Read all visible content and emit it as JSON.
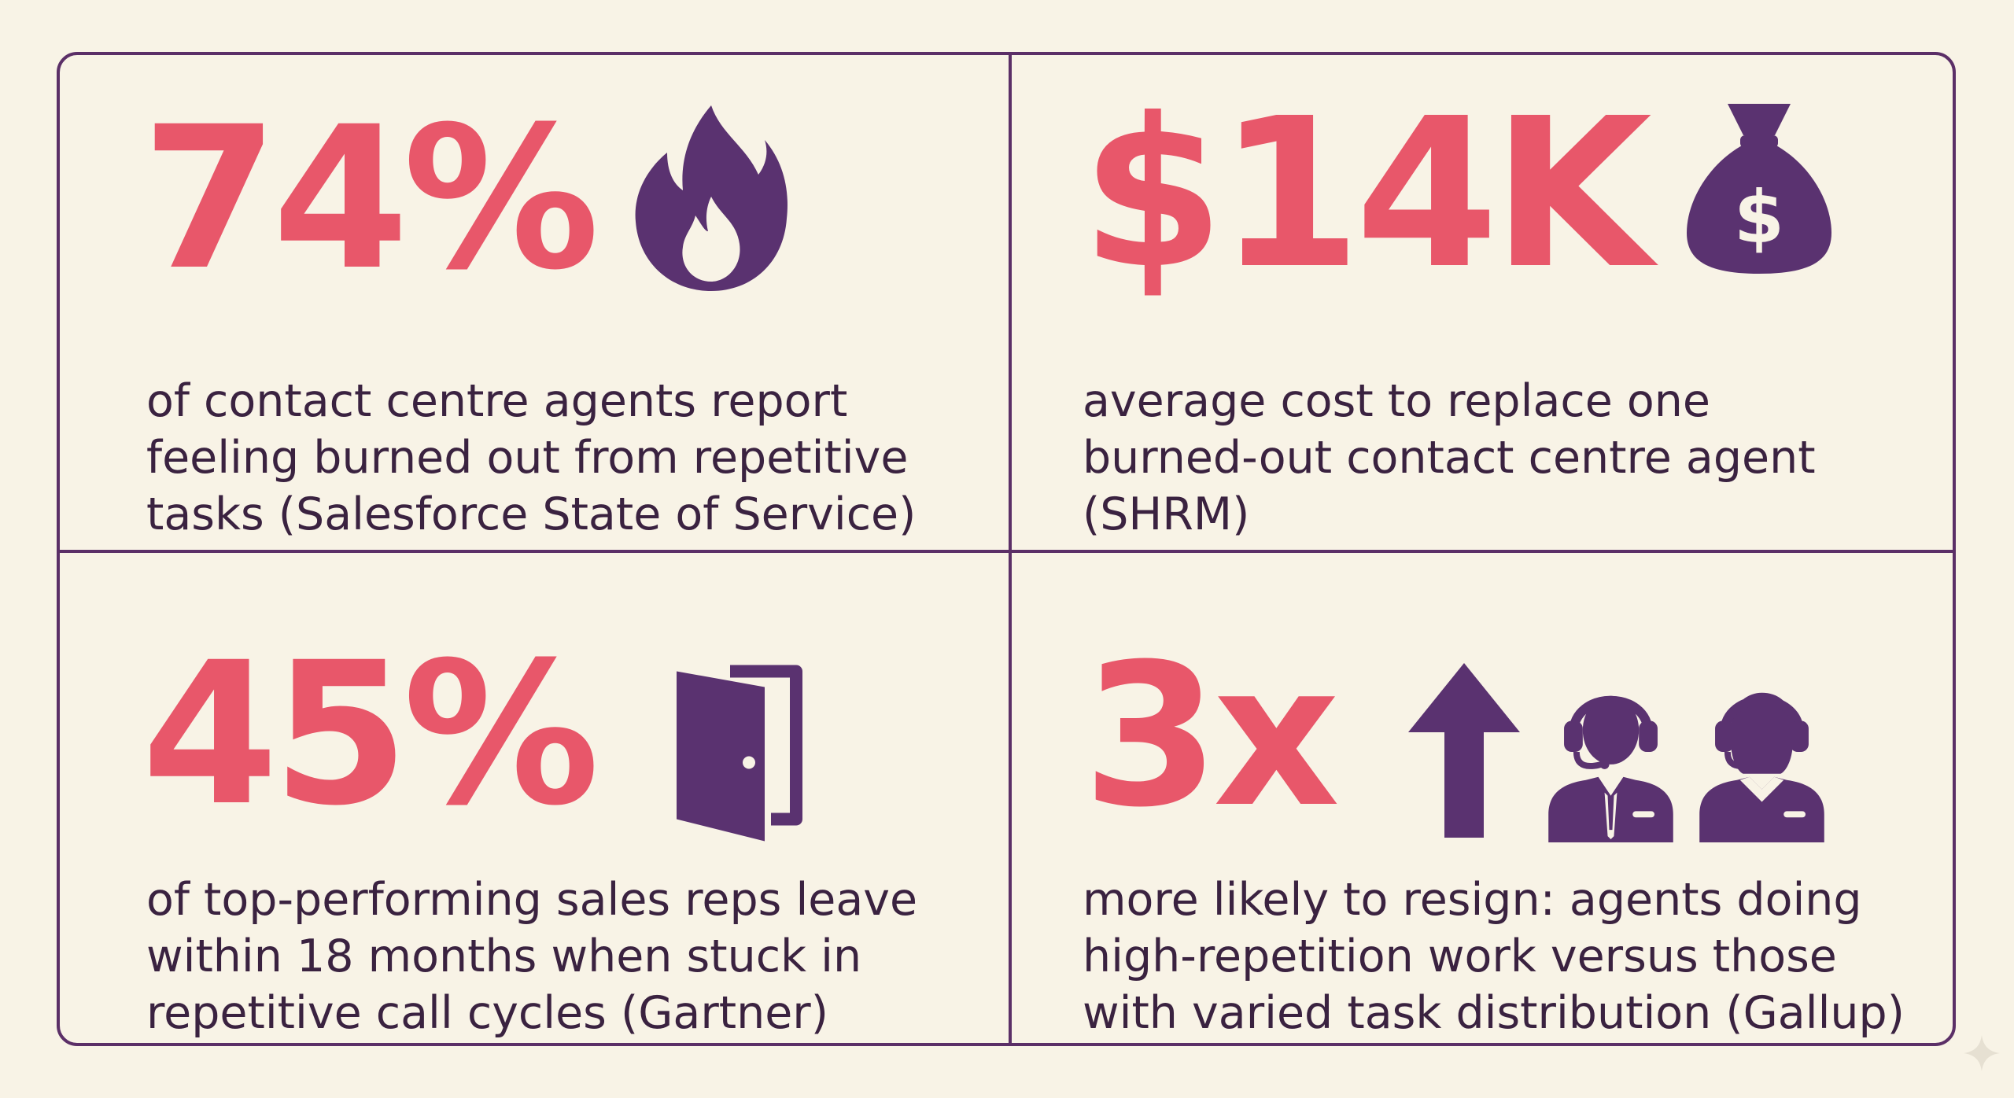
{
  "cards": [
    {
      "value": "74%",
      "icon": "flame-icon",
      "description_lines": [
        "of contact centre agents report",
        "feeling burned out from repetitive",
        "tasks (Salesforce State of Service)"
      ]
    },
    {
      "value": "$14K",
      "icon": "money-bag-icon",
      "icon_label": "$",
      "description_lines": [
        "average cost to replace one",
        "burned-out contact centre agent",
        "(SHRM)"
      ]
    },
    {
      "value": "45%",
      "icon": "open-door-icon",
      "description_lines": [
        "of top-performing sales reps leave",
        "within 18 months when stuck in",
        "repetitive call cycles (Gartner)"
      ]
    },
    {
      "value": "3x",
      "icons": [
        "up-arrow-icon",
        "male-agent-headset-icon",
        "female-agent-headset-icon"
      ],
      "description_lines": [
        "more likely to resign: agents doing",
        "high-repetition work versus those",
        "with varied task distribution (Gallup)"
      ]
    }
  ],
  "colors": {
    "background": "#f8f3e6",
    "accent": "#e8576a",
    "icon": "#5a3270",
    "border": "#5b2f67",
    "text": "#3a2240"
  }
}
